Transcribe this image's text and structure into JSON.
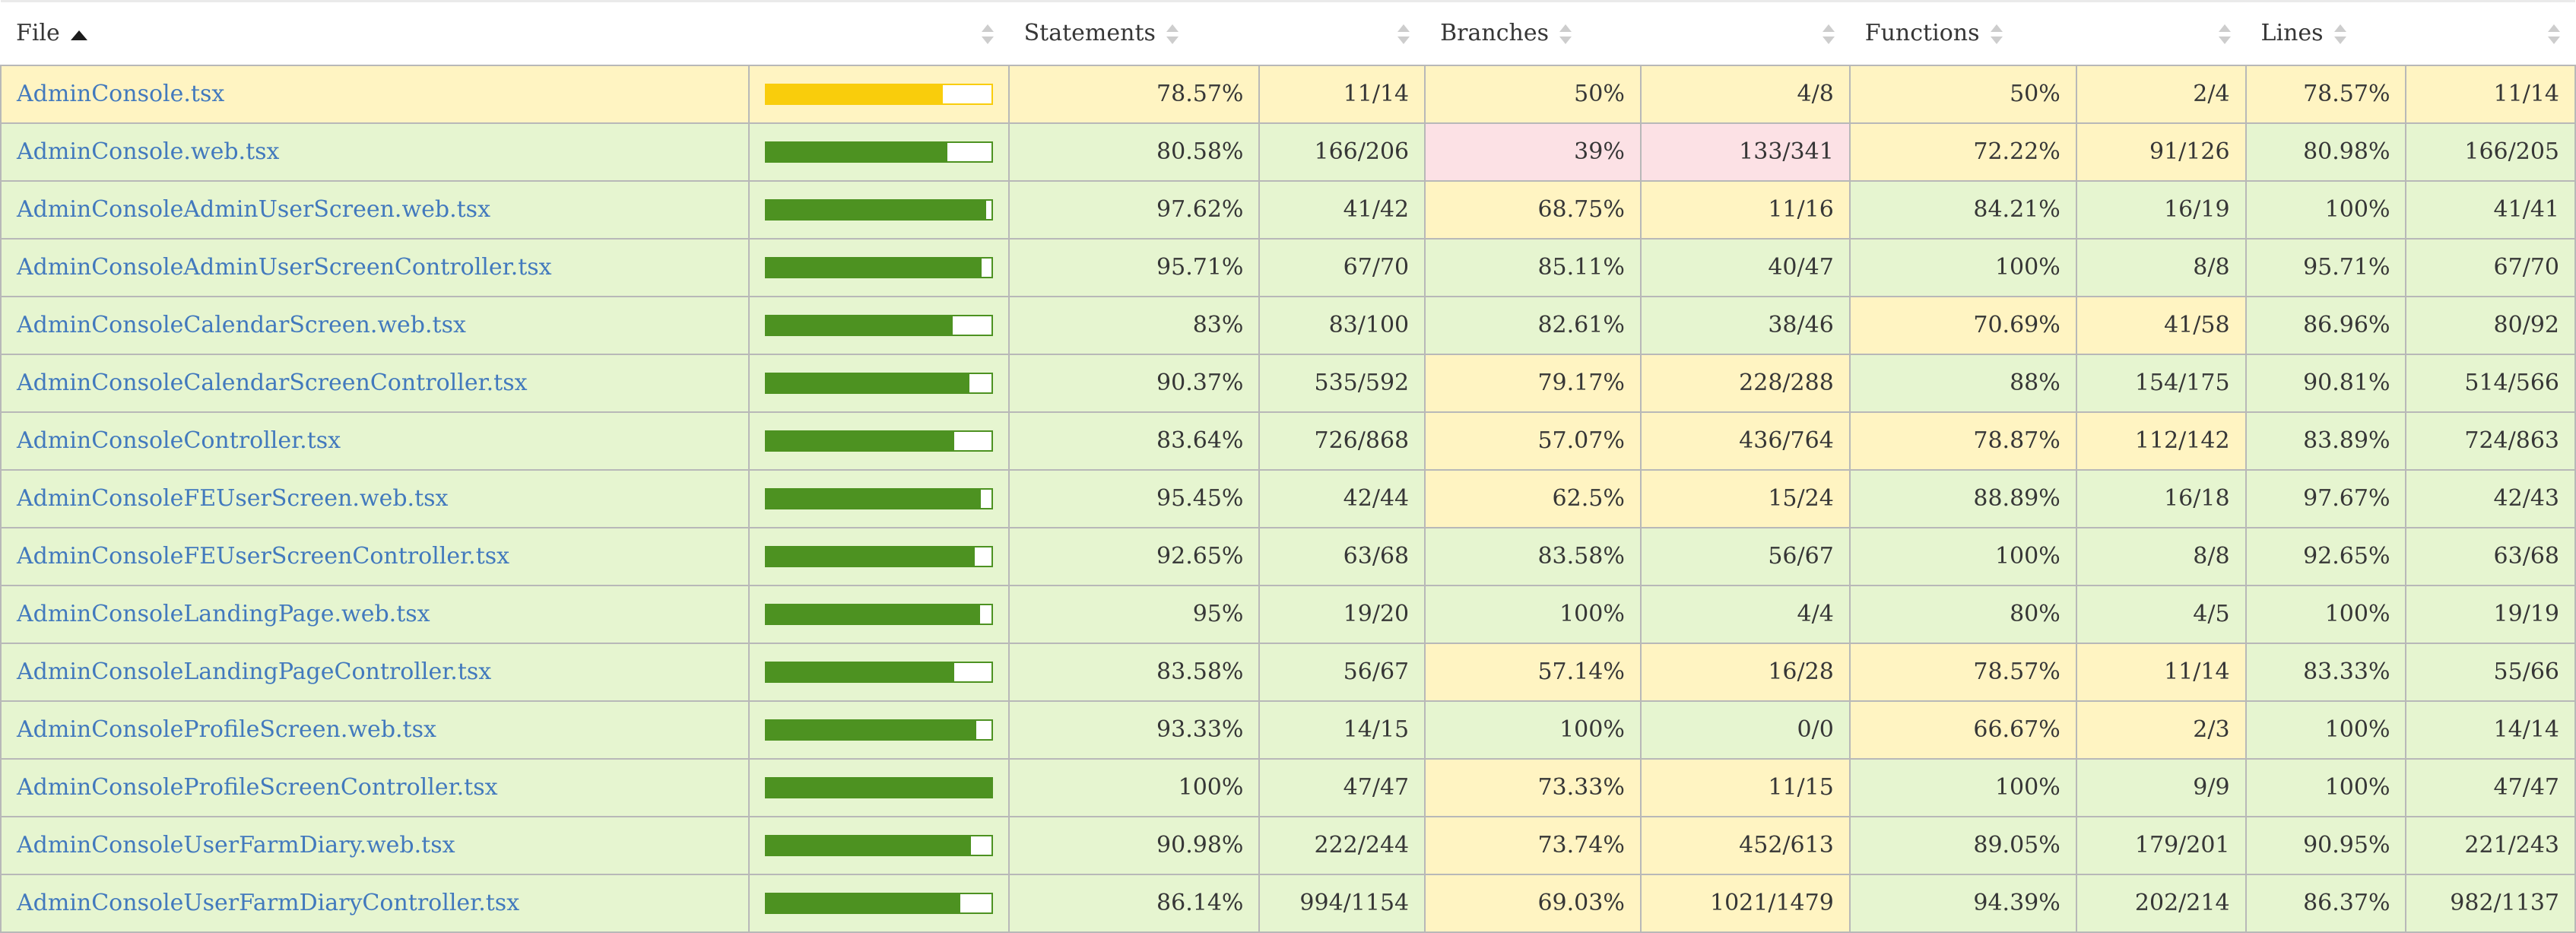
{
  "header": {
    "file_label": "File",
    "file_sort_direction": "asc",
    "columns": [
      "Statements",
      "Branches",
      "Functions",
      "Lines"
    ]
  },
  "colors": {
    "high_bg": "#e6f5d0",
    "medium_bg": "#fff4c2",
    "low_bg": "#fce1e5",
    "bar_high": "#4d9221",
    "bar_medium": "#f9cd0c",
    "link": "#4279bd",
    "grid_border": "#b8b8b8"
  },
  "rows": [
    {
      "file": "AdminConsole.tsx",
      "level": "medium",
      "statements": {
        "pct": "78.57%",
        "abs": "11/14",
        "level": "medium"
      },
      "branches": {
        "pct": "50%",
        "abs": "4/8",
        "level": "medium"
      },
      "functions": {
        "pct": "50%",
        "abs": "2/4",
        "level": "medium"
      },
      "lines": {
        "pct": "78.57%",
        "abs": "11/14",
        "level": "medium"
      }
    },
    {
      "file": "AdminConsole.web.tsx",
      "level": "high",
      "statements": {
        "pct": "80.58%",
        "abs": "166/206",
        "level": "high"
      },
      "branches": {
        "pct": "39%",
        "abs": "133/341",
        "level": "low"
      },
      "functions": {
        "pct": "72.22%",
        "abs": "91/126",
        "level": "medium"
      },
      "lines": {
        "pct": "80.98%",
        "abs": "166/205",
        "level": "high"
      }
    },
    {
      "file": "AdminConsoleAdminUserScreen.web.tsx",
      "level": "high",
      "statements": {
        "pct": "97.62%",
        "abs": "41/42",
        "level": "high"
      },
      "branches": {
        "pct": "68.75%",
        "abs": "11/16",
        "level": "medium"
      },
      "functions": {
        "pct": "84.21%",
        "abs": "16/19",
        "level": "high"
      },
      "lines": {
        "pct": "100%",
        "abs": "41/41",
        "level": "high"
      }
    },
    {
      "file": "AdminConsoleAdminUserScreenController.tsx",
      "level": "high",
      "statements": {
        "pct": "95.71%",
        "abs": "67/70",
        "level": "high"
      },
      "branches": {
        "pct": "85.11%",
        "abs": "40/47",
        "level": "high"
      },
      "functions": {
        "pct": "100%",
        "abs": "8/8",
        "level": "high"
      },
      "lines": {
        "pct": "95.71%",
        "abs": "67/70",
        "level": "high"
      }
    },
    {
      "file": "AdminConsoleCalendarScreen.web.tsx",
      "level": "high",
      "statements": {
        "pct": "83%",
        "abs": "83/100",
        "level": "high"
      },
      "branches": {
        "pct": "82.61%",
        "abs": "38/46",
        "level": "high"
      },
      "functions": {
        "pct": "70.69%",
        "abs": "41/58",
        "level": "medium"
      },
      "lines": {
        "pct": "86.96%",
        "abs": "80/92",
        "level": "high"
      }
    },
    {
      "file": "AdminConsoleCalendarScreenController.tsx",
      "level": "high",
      "statements": {
        "pct": "90.37%",
        "abs": "535/592",
        "level": "high"
      },
      "branches": {
        "pct": "79.17%",
        "abs": "228/288",
        "level": "medium"
      },
      "functions": {
        "pct": "88%",
        "abs": "154/175",
        "level": "high"
      },
      "lines": {
        "pct": "90.81%",
        "abs": "514/566",
        "level": "high"
      }
    },
    {
      "file": "AdminConsoleController.tsx",
      "level": "high",
      "statements": {
        "pct": "83.64%",
        "abs": "726/868",
        "level": "high"
      },
      "branches": {
        "pct": "57.07%",
        "abs": "436/764",
        "level": "medium"
      },
      "functions": {
        "pct": "78.87%",
        "abs": "112/142",
        "level": "medium"
      },
      "lines": {
        "pct": "83.89%",
        "abs": "724/863",
        "level": "high"
      }
    },
    {
      "file": "AdminConsoleFEUserScreen.web.tsx",
      "level": "high",
      "statements": {
        "pct": "95.45%",
        "abs": "42/44",
        "level": "high"
      },
      "branches": {
        "pct": "62.5%",
        "abs": "15/24",
        "level": "medium"
      },
      "functions": {
        "pct": "88.89%",
        "abs": "16/18",
        "level": "high"
      },
      "lines": {
        "pct": "97.67%",
        "abs": "42/43",
        "level": "high"
      }
    },
    {
      "file": "AdminConsoleFEUserScreenController.tsx",
      "level": "high",
      "statements": {
        "pct": "92.65%",
        "abs": "63/68",
        "level": "high"
      },
      "branches": {
        "pct": "83.58%",
        "abs": "56/67",
        "level": "high"
      },
      "functions": {
        "pct": "100%",
        "abs": "8/8",
        "level": "high"
      },
      "lines": {
        "pct": "92.65%",
        "abs": "63/68",
        "level": "high"
      }
    },
    {
      "file": "AdminConsoleLandingPage.web.tsx",
      "level": "high",
      "statements": {
        "pct": "95%",
        "abs": "19/20",
        "level": "high"
      },
      "branches": {
        "pct": "100%",
        "abs": "4/4",
        "level": "high"
      },
      "functions": {
        "pct": "80%",
        "abs": "4/5",
        "level": "high"
      },
      "lines": {
        "pct": "100%",
        "abs": "19/19",
        "level": "high"
      }
    },
    {
      "file": "AdminConsoleLandingPageController.tsx",
      "level": "high",
      "statements": {
        "pct": "83.58%",
        "abs": "56/67",
        "level": "high"
      },
      "branches": {
        "pct": "57.14%",
        "abs": "16/28",
        "level": "medium"
      },
      "functions": {
        "pct": "78.57%",
        "abs": "11/14",
        "level": "medium"
      },
      "lines": {
        "pct": "83.33%",
        "abs": "55/66",
        "level": "high"
      }
    },
    {
      "file": "AdminConsoleProfileScreen.web.tsx",
      "level": "high",
      "statements": {
        "pct": "93.33%",
        "abs": "14/15",
        "level": "high"
      },
      "branches": {
        "pct": "100%",
        "abs": "0/0",
        "level": "high"
      },
      "functions": {
        "pct": "66.67%",
        "abs": "2/3",
        "level": "medium"
      },
      "lines": {
        "pct": "100%",
        "abs": "14/14",
        "level": "high"
      }
    },
    {
      "file": "AdminConsoleProfileScreenController.tsx",
      "level": "high",
      "statements": {
        "pct": "100%",
        "abs": "47/47",
        "level": "high"
      },
      "branches": {
        "pct": "73.33%",
        "abs": "11/15",
        "level": "medium"
      },
      "functions": {
        "pct": "100%",
        "abs": "9/9",
        "level": "high"
      },
      "lines": {
        "pct": "100%",
        "abs": "47/47",
        "level": "high"
      }
    },
    {
      "file": "AdminConsoleUserFarmDiary.web.tsx",
      "level": "high",
      "statements": {
        "pct": "90.98%",
        "abs": "222/244",
        "level": "high"
      },
      "branches": {
        "pct": "73.74%",
        "abs": "452/613",
        "level": "medium"
      },
      "functions": {
        "pct": "89.05%",
        "abs": "179/201",
        "level": "high"
      },
      "lines": {
        "pct": "90.95%",
        "abs": "221/243",
        "level": "high"
      }
    },
    {
      "file": "AdminConsoleUserFarmDiaryController.tsx",
      "level": "high",
      "statements": {
        "pct": "86.14%",
        "abs": "994/1154",
        "level": "high"
      },
      "branches": {
        "pct": "69.03%",
        "abs": "1021/1479",
        "level": "medium"
      },
      "functions": {
        "pct": "94.39%",
        "abs": "202/214",
        "level": "high"
      },
      "lines": {
        "pct": "86.37%",
        "abs": "982/1137",
        "level": "high"
      }
    }
  ]
}
